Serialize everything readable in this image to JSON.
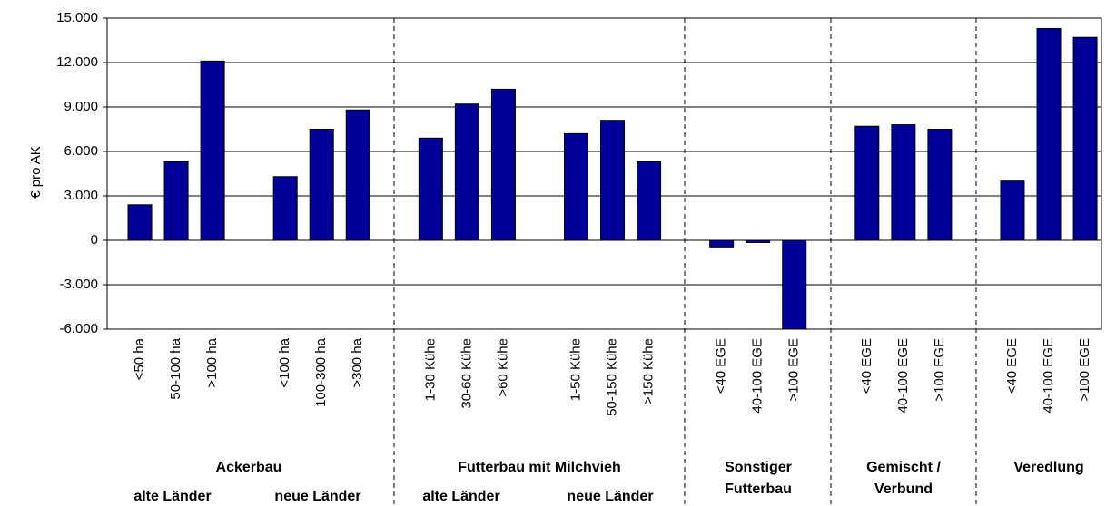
{
  "chart_data": {
    "type": "bar",
    "y_label": "€ pro AK",
    "categories": [
      "<50 ha",
      "50-100 ha",
      ">100 ha",
      null,
      "<100 ha",
      "100-300 ha",
      ">300 ha",
      null,
      "1-30 Kühe",
      "30-60 Kühe",
      ">60 Kühe",
      null,
      "1-50 Kühe",
      "50-150 Kühe",
      ">150 Kühe",
      null,
      "<40 EGE",
      "40-100 EGE",
      ">100 EGE",
      null,
      "<40 EGE",
      "40-100 EGE",
      ">100 EGE",
      null,
      "<40 EGE",
      "40-100 EGE",
      ">100 EGE"
    ],
    "values": [
      2400,
      5300,
      12100,
      null,
      4300,
      7500,
      8800,
      null,
      6900,
      9200,
      10200,
      null,
      7200,
      8100,
      5300,
      null,
      -450,
      -150,
      -6000,
      null,
      7700,
      7800,
      7500,
      null,
      4000,
      14300,
      13700
    ],
    "color": "#000099",
    "ylim": [
      -6000,
      15000
    ],
    "yticks": [
      {
        "value": -6000,
        "label": "-6.000"
      },
      {
        "value": -3000,
        "label": "-3.000"
      },
      0,
      {
        "value": 3000,
        "label": "3.000"
      },
      {
        "value": 6000,
        "label": "6.000"
      },
      {
        "value": 9000,
        "label": "9.000"
      },
      {
        "value": 12000,
        "label": "12.000"
      },
      {
        "value": 15000,
        "label": "15.000"
      }
    ],
    "grid": true,
    "groups": [
      {
        "label": [
          "Ackerbau"
        ],
        "sublabels": [
          "alte Länder",
          "neue Länder"
        ]
      },
      {
        "label": [
          "Futterbau mit Milchvieh"
        ],
        "sublabels": [
          "alte Länder",
          "neue Länder"
        ]
      },
      {
        "label": [
          "Sonstiger",
          "Futterbau"
        ]
      },
      {
        "label": [
          "Gemischt /",
          "Verbund"
        ]
      },
      {
        "label": [
          "Veredlung"
        ]
      }
    ]
  }
}
